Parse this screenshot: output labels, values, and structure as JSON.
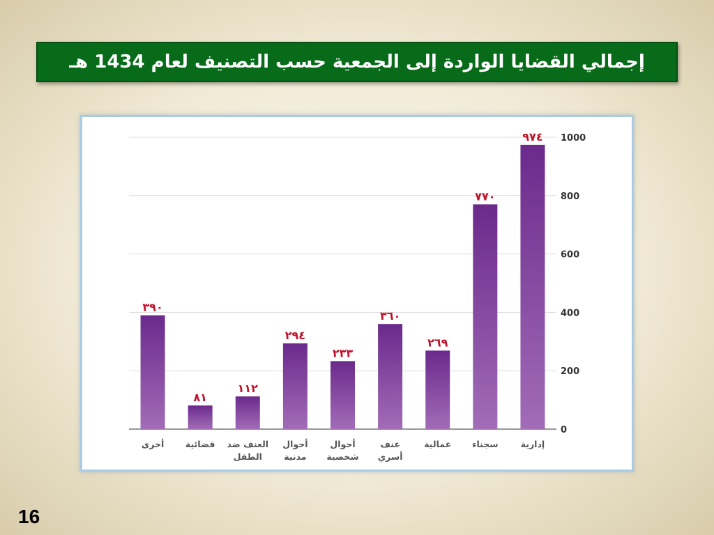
{
  "slide": {
    "title": "إجمالي القضايا الواردة إلى الجمعية حسب التصنيف لعام 1434 هـ",
    "page_number": "16"
  },
  "colors": {
    "title_bg": "#076b19",
    "bar_top": "#6b2a8c",
    "bar_bottom": "#a26cb7",
    "value_label": "#c0122b",
    "axis_text": "#333333",
    "category_text": "#555555"
  },
  "chart_data": {
    "type": "bar",
    "title": "",
    "xlabel": "",
    "ylabel": "",
    "ylim": [
      0,
      1000
    ],
    "yticks": [
      0,
      200,
      400,
      600,
      800,
      1000
    ],
    "y_axis_side": "right",
    "grid": true,
    "categories": [
      "إدارية",
      "سجناء",
      "عمالية",
      "عنف أسري",
      "أحوال شخصية",
      "أحوال مدنية",
      "العنف ضد الطفل",
      "قضائية",
      "أخرى"
    ],
    "category_lines": [
      [
        "إدارية"
      ],
      [
        "سجناء"
      ],
      [
        "عمالية"
      ],
      [
        "عنف",
        "أسري"
      ],
      [
        "أحوال",
        "شخصية"
      ],
      [
        "أحوال",
        "مدنية"
      ],
      [
        "العنف ضد",
        "الطفل"
      ],
      [
        "قضائية"
      ],
      [
        "أخرى"
      ]
    ],
    "values": [
      974,
      770,
      269,
      360,
      233,
      294,
      112,
      81,
      390
    ],
    "value_labels": [
      "٩٧٤",
      "٧٧٠",
      "٢٦٩",
      "٣٦٠",
      "٢٣٣",
      "٢٩٤",
      "١١٢",
      "٨١",
      "٣٩٠"
    ]
  }
}
